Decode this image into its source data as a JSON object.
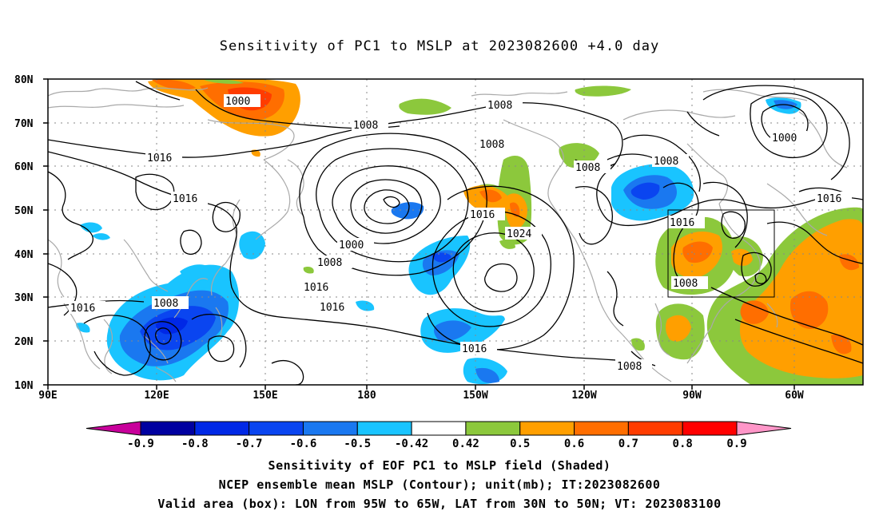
{
  "title": "Sensitivity of PC1 to MSLP at 2023082600 +4.0 day",
  "lat_labels": [
    "80N",
    "70N",
    "60N",
    "50N",
    "40N",
    "30N",
    "20N",
    "10N"
  ],
  "lon_labels": [
    "90E",
    "120E",
    "150E",
    "180",
    "150W",
    "120W",
    "90W",
    "60W"
  ],
  "colorbar": {
    "ticks": [
      "-0.9",
      "-0.8",
      "-0.7",
      "-0.6",
      "-0.5",
      "-0.42",
      "0.42",
      "0.5",
      "0.6",
      "0.7",
      "0.8",
      "0.9"
    ],
    "colors": [
      "#c8009b",
      "#0000a0",
      "#0028e6",
      "#0a45f0",
      "#1a78f0",
      "#19c4ff",
      "#ffffff",
      "#8cc83c",
      "#ff9f00",
      "#ff6e00",
      "#ff3c00",
      "#ff0000",
      "#ff96c8"
    ]
  },
  "contour_labels": {
    "c1": "1000",
    "c2": "1008",
    "c3": "1016",
    "c4": "1008",
    "c5": "1016",
    "c6": "1016",
    "c7": "1000",
    "c8": "1008",
    "c9": "1016",
    "c10": "1016",
    "c11": "1008",
    "c12": "1016",
    "c13": "1024",
    "c14": "1016",
    "c15": "1008",
    "c16": "1008",
    "c17": "1000",
    "c18": "1016",
    "c19": "1016",
    "c20": "1008",
    "c21": "1008"
  },
  "footer": {
    "line1": "Sensitivity of EOF PC1 to MSLP field (Shaded)",
    "line2": "NCEP ensemble mean MSLP (Contour); unit(mb); IT:2023082600",
    "line3": "Valid area (box): LON from 95W to 65W, LAT from 30N to 50N; VT: 2023083100"
  }
}
